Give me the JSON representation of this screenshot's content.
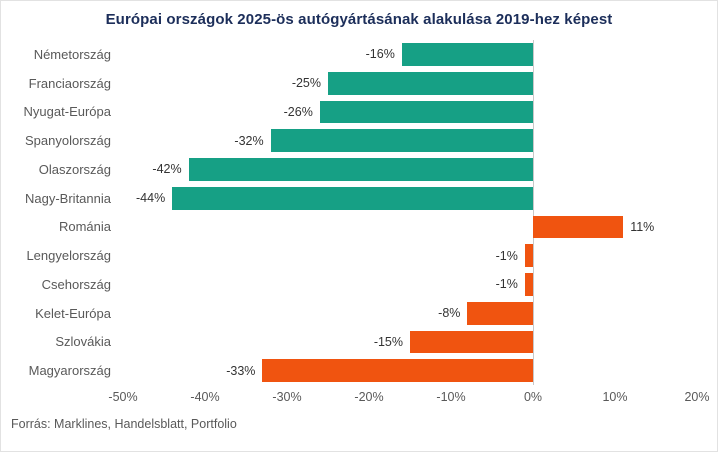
{
  "title": "Európai országok 2025-ös autógyártásának alakulása 2019-hez képest",
  "source": "Forrás: Marklines, Handelsblatt, Portfolio",
  "colors": {
    "western_teal": "#16a085",
    "eastern_orange": "#f05410",
    "title_navy": "#1c2e5a",
    "axis_gray": "#595959"
  },
  "chart_data": {
    "type": "bar",
    "orientation": "horizontal",
    "title": "Európai országok 2025-ös autógyártásának alakulása 2019-hez képest",
    "xlabel": "",
    "ylabel": "",
    "xlim": [
      -50,
      20
    ],
    "grid": false,
    "categories": [
      "Németország",
      "Franciaország",
      "Nyugat-Európa",
      "Spanyolország",
      "Olaszország",
      "Nagy-Britannia",
      "Románia",
      "Lengyelország",
      "Csehország",
      "Kelet-Európa",
      "Szlovákia",
      "Magyarország"
    ],
    "values": [
      -16,
      -25,
      -26,
      -32,
      -42,
      -44,
      11,
      -1,
      -1,
      -8,
      -15,
      -33
    ],
    "labels": [
      "-16%",
      "-25%",
      "-26%",
      "-32%",
      "-42%",
      "-44%",
      "11%",
      "-1%",
      "-1%",
      "-8%",
      "-15%",
      "-33%"
    ],
    "bar_colors": [
      "#16a085",
      "#16a085",
      "#16a085",
      "#16a085",
      "#16a085",
      "#16a085",
      "#f05410",
      "#f05410",
      "#f05410",
      "#f05410",
      "#f05410",
      "#f05410"
    ],
    "xtick_values": [
      -50,
      -40,
      -30,
      -20,
      -10,
      0,
      10,
      20
    ],
    "xtick_labels": [
      "-50%",
      "-40%",
      "-30%",
      "-20%",
      "-10%",
      "0%",
      "10%",
      "20%"
    ]
  }
}
